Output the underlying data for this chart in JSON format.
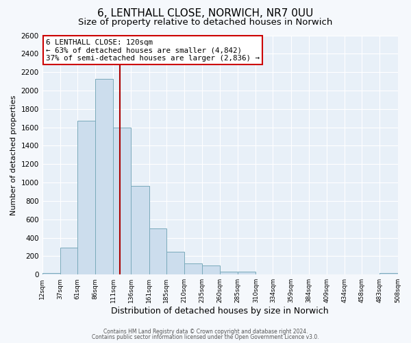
{
  "title": "6, LENTHALL CLOSE, NORWICH, NR7 0UU",
  "subtitle": "Size of property relative to detached houses in Norwich",
  "xlabel": "Distribution of detached houses by size in Norwich",
  "ylabel": "Number of detached properties",
  "bar_color": "#ccdded",
  "bar_edge_color": "#7aaabb",
  "bins": [
    12,
    37,
    61,
    86,
    111,
    136,
    161,
    185,
    210,
    235,
    260,
    285,
    310,
    334,
    359,
    384,
    409,
    434,
    458,
    483,
    508
  ],
  "counts": [
    20,
    290,
    1670,
    2130,
    1600,
    960,
    500,
    250,
    120,
    95,
    30,
    30,
    5,
    5,
    5,
    5,
    5,
    5,
    5,
    20
  ],
  "tick_labels": [
    "12sqm",
    "37sqm",
    "61sqm",
    "86sqm",
    "111sqm",
    "136sqm",
    "161sqm",
    "185sqm",
    "210sqm",
    "235sqm",
    "260sqm",
    "285sqm",
    "310sqm",
    "334sqm",
    "359sqm",
    "384sqm",
    "409sqm",
    "434sqm",
    "458sqm",
    "483sqm",
    "508sqm"
  ],
  "property_size": 120,
  "vline_color": "#aa0000",
  "annotation_line1": "6 LENTHALL CLOSE: 120sqm",
  "annotation_line2": "← 63% of detached houses are smaller (4,842)",
  "annotation_line3": "37% of semi-detached houses are larger (2,836) →",
  "annotation_box_color": "#ffffff",
  "annotation_box_edge": "#cc0000",
  "ylim": [
    0,
    2600
  ],
  "yticks": [
    0,
    200,
    400,
    600,
    800,
    1000,
    1200,
    1400,
    1600,
    1800,
    2000,
    2200,
    2400,
    2600
  ],
  "footer1": "Contains HM Land Registry data © Crown copyright and database right 2024.",
  "footer2": "Contains public sector information licensed under the Open Government Licence v3.0.",
  "bg_color": "#f5f8fc",
  "plot_bg_color": "#e8f0f8",
  "grid_color": "#ffffff",
  "title_fontsize": 11,
  "subtitle_fontsize": 9.5
}
